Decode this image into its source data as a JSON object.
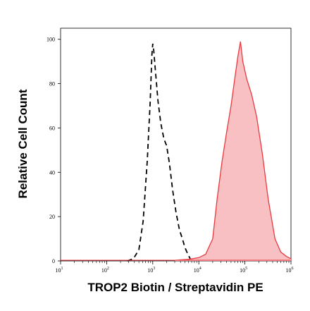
{
  "chart_data": {
    "type": "area",
    "xlabel": "TROP2 Biotin / Streptavidin PE",
    "ylabel": "Relative Cell Count",
    "x_scale": "log",
    "xlim": [
      10,
      1000000
    ],
    "ylim": [
      0,
      105
    ],
    "x_ticks": [
      {
        "value": 10,
        "base": "10",
        "exp": "1"
      },
      {
        "value": 100,
        "base": "10",
        "exp": "2"
      },
      {
        "value": 1000,
        "base": "10",
        "exp": "3"
      },
      {
        "value": 10000,
        "base": "10",
        "exp": "4"
      },
      {
        "value": 100000,
        "base": "10",
        "exp": "5"
      },
      {
        "value": 1000000,
        "base": "10",
        "exp": "6"
      }
    ],
    "y_ticks": [
      "0",
      "20",
      "40",
      "60",
      "80",
      "100"
    ],
    "grid": false,
    "series": [
      {
        "style": "dashed-black-line",
        "color": "#000000",
        "x": [
          280,
          380,
          500,
          620,
          760,
          880,
          960,
          1000,
          1050,
          1150,
          1300,
          1500,
          1750,
          2000,
          2300,
          2700,
          3200,
          3800,
          4400,
          5000,
          5800,
          6500
        ],
        "y": [
          0,
          1,
          5,
          18,
          45,
          72,
          93,
          98,
          95,
          85,
          72,
          62,
          55,
          52,
          44,
          32,
          22,
          14,
          10,
          6,
          3,
          1
        ]
      },
      {
        "style": "filled-red-area",
        "color": "#e8393f",
        "fill": "#f9c0c3",
        "x": [
          3000,
          6000,
          10000,
          14000,
          20000,
          25000,
          32000,
          40000,
          50000,
          60000,
          70000,
          80000,
          90000,
          110000,
          140000,
          180000,
          240000,
          320000,
          450000,
          600000,
          800000,
          1000000
        ],
        "y": [
          0.3,
          0.7,
          1.5,
          3,
          10,
          28,
          45,
          58,
          70,
          82,
          92,
          99,
          90,
          82,
          75,
          65,
          48,
          28,
          10,
          4,
          2,
          1
        ]
      }
    ]
  }
}
